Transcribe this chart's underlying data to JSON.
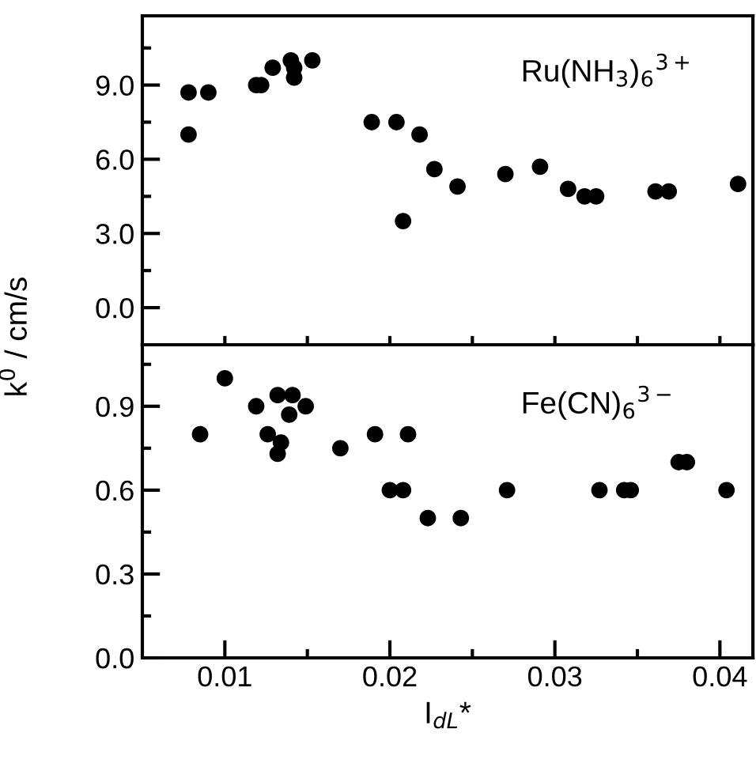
{
  "chart_data": [
    {
      "type": "scatter",
      "ylabel": "k$^{0}$ / cm/s",
      "annotations": [
        "Ru(NH$_{3}$)$_{6}$$^{3+}$"
      ],
      "marker": "circle",
      "tick_labels": "y",
      "grid": false,
      "legend": false,
      "xlim": [
        0.005,
        0.042
      ],
      "xticks": [
        {
          "value": 0.01,
          "label": null
        },
        {
          "value": 0.015,
          "label": null
        },
        {
          "value": 0.02,
          "label": null
        },
        {
          "value": 0.025,
          "label": null
        },
        {
          "value": 0.03,
          "label": null
        },
        {
          "value": 0.035,
          "label": null
        },
        {
          "value": 0.04,
          "label": null
        }
      ],
      "ylim": [
        -1.5,
        11.8
      ],
      "yticks": [
        {
          "value": 0.0,
          "label": "0.0"
        },
        {
          "value": 1.5,
          "label": null
        },
        {
          "value": 3.0,
          "label": "3.0"
        },
        {
          "value": 4.5,
          "label": null
        },
        {
          "value": 6.0,
          "label": "6.0"
        },
        {
          "value": 7.5,
          "label": null
        },
        {
          "value": 9.0,
          "label": "9.0"
        },
        {
          "value": 10.5,
          "label": null
        }
      ],
      "series": [
        {
          "color": "#000000",
          "x": [
            0.0078,
            0.0078,
            0.009,
            0.0119,
            0.0122,
            0.0129,
            0.014,
            0.0142,
            0.0142,
            0.0153,
            0.0189,
            0.0204,
            0.0208,
            0.0218,
            0.0227,
            0.0241,
            0.027,
            0.0291,
            0.0308,
            0.0318,
            0.0325,
            0.0361,
            0.0369,
            0.0411
          ],
          "values": [
            8.7,
            7.0,
            8.7,
            9.0,
            9.0,
            9.7,
            10.0,
            9.7,
            9.3,
            10.0,
            7.5,
            7.5,
            3.5,
            7.0,
            5.6,
            4.9,
            5.4,
            5.7,
            4.8,
            4.5,
            4.5,
            4.7,
            4.7,
            5.0
          ]
        }
      ]
    },
    {
      "type": "scatter",
      "xlabel": "I$_{dL}$*",
      "annotations": [
        "Fe(CN)$_{6}$$^{3−}$"
      ],
      "marker": "circle",
      "grid": false,
      "legend": false,
      "xlim": [
        0.005,
        0.042
      ],
      "xticks": [
        {
          "value": 0.01,
          "label": "0.01"
        },
        {
          "value": 0.015,
          "label": null
        },
        {
          "value": 0.02,
          "label": "0.02"
        },
        {
          "value": 0.025,
          "label": null
        },
        {
          "value": 0.03,
          "label": "0.03"
        },
        {
          "value": 0.035,
          "label": null
        },
        {
          "value": 0.04,
          "label": "0.04"
        }
      ],
      "ylim": [
        0.0,
        1.12
      ],
      "yticks": [
        {
          "value": 0.0,
          "label": "0.0"
        },
        {
          "value": 0.15,
          "label": null
        },
        {
          "value": 0.3,
          "label": "0.3"
        },
        {
          "value": 0.45,
          "label": null
        },
        {
          "value": 0.6,
          "label": "0.6"
        },
        {
          "value": 0.75,
          "label": null
        },
        {
          "value": 0.9,
          "label": "0.9"
        },
        {
          "value": 1.05,
          "label": null
        }
      ],
      "series": [
        {
          "color": "#000000",
          "x": [
            0.0085,
            0.01,
            0.0119,
            0.0126,
            0.0132,
            0.0132,
            0.0134,
            0.0139,
            0.0141,
            0.0149,
            0.017,
            0.0191,
            0.02,
            0.0208,
            0.0211,
            0.0223,
            0.0243,
            0.0271,
            0.0327,
            0.0342,
            0.0346,
            0.0375,
            0.038,
            0.0404
          ],
          "values": [
            0.8,
            1.0,
            0.9,
            0.8,
            0.94,
            0.73,
            0.77,
            0.87,
            0.94,
            0.9,
            0.75,
            0.8,
            0.6,
            0.6,
            0.8,
            0.5,
            0.5,
            0.6,
            0.6,
            0.6,
            0.6,
            0.7,
            0.7,
            0.6
          ]
        }
      ]
    }
  ]
}
